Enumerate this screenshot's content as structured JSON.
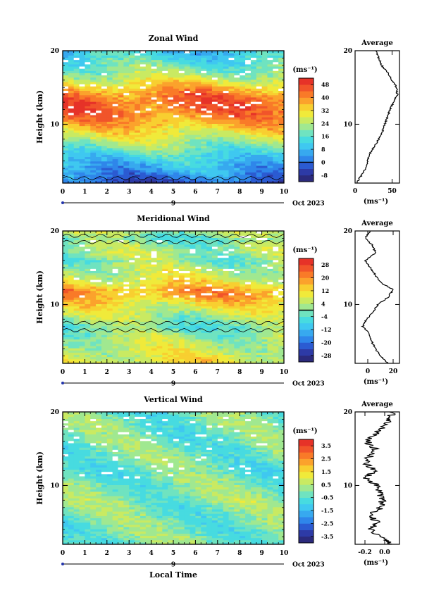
{
  "chart_data": [
    {
      "type": "heatmap",
      "title": "Zonal Wind",
      "xlabel": "",
      "ylabel": "Height (km)",
      "xlim": [
        0,
        10
      ],
      "ylim": [
        2,
        20
      ],
      "x_ticks": [
        "0",
        "1",
        "2",
        "3",
        "4",
        "5",
        "6",
        "7",
        "8",
        "9",
        "10"
      ],
      "y_ticks": [
        "10",
        "20"
      ],
      "date_label": "9",
      "date_suffix": "Oct 2023",
      "colorbar": {
        "unit": "(ms⁻¹)",
        "levels": [
          -12,
          -8,
          -4,
          0,
          4,
          8,
          12,
          16,
          20,
          24,
          28,
          32,
          36,
          40,
          44,
          48,
          52
        ],
        "tick_labels": [
          "48",
          "40",
          "32",
          "24",
          "16",
          "8",
          "0",
          "-8"
        ],
        "tick_values": [
          48,
          40,
          32,
          24,
          16,
          8,
          0,
          -8
        ],
        "zero_line": 0
      },
      "profile_by_height": {
        "heights": [
          2,
          3,
          4,
          5,
          6,
          7,
          8,
          9,
          10,
          11,
          12,
          13,
          14,
          15,
          16,
          17,
          18,
          19,
          20
        ],
        "values": [
          -4,
          2,
          6,
          10,
          14,
          20,
          26,
          30,
          36,
          40,
          43,
          44,
          42,
          36,
          28,
          22,
          18,
          14,
          10
        ]
      },
      "average": {
        "title": "Average",
        "unit": "(ms⁻¹)",
        "xlim": [
          0,
          60
        ],
        "x_ticks": [
          "0",
          "50"
        ],
        "y_ticks": [
          "10",
          "20"
        ],
        "heights": [
          2,
          3,
          4,
          5,
          6,
          7,
          8,
          9,
          10,
          11,
          12,
          13,
          14,
          15,
          16,
          17,
          18,
          19,
          20
        ],
        "values": [
          2,
          8,
          14,
          17,
          20,
          26,
          32,
          37,
          40,
          44,
          47,
          52,
          57,
          56,
          50,
          44,
          36,
          32,
          28
        ]
      }
    },
    {
      "type": "heatmap",
      "title": "Meridional Wind",
      "xlabel": "",
      "ylabel": "Height (km)",
      "xlim": [
        0,
        10
      ],
      "ylim": [
        2,
        20
      ],
      "x_ticks": [
        "0",
        "1",
        "2",
        "3",
        "4",
        "5",
        "6",
        "7",
        "8",
        "9",
        "10"
      ],
      "y_ticks": [
        "10",
        "20"
      ],
      "date_label": "9",
      "date_suffix": "Oct 2023",
      "colorbar": {
        "unit": "(ms⁻¹)",
        "levels": [
          -32,
          -28,
          -24,
          -20,
          -16,
          -12,
          -8,
          -4,
          0,
          4,
          8,
          12,
          16,
          20,
          24,
          28,
          32
        ],
        "tick_labels": [
          "28",
          "20",
          "12",
          "4",
          "-4",
          "-12",
          "-20",
          "-28"
        ],
        "tick_values": [
          28,
          20,
          12,
          4,
          -4,
          -12,
          -20,
          -28
        ],
        "zero_line": 0
      },
      "profile_by_height": {
        "heights": [
          2,
          3,
          4,
          5,
          6,
          7,
          8,
          9,
          10,
          11,
          12,
          13,
          14,
          15,
          16,
          17,
          18,
          19,
          20
        ],
        "values": [
          10,
          8,
          6,
          4,
          2,
          -2,
          2,
          6,
          10,
          16,
          18,
          10,
          6,
          4,
          0,
          4,
          2,
          -2,
          4
        ]
      },
      "average": {
        "title": "Average",
        "unit": "(ms⁻¹)",
        "xlim": [
          -10,
          25
        ],
        "x_ticks": [
          "0",
          "20"
        ],
        "y_ticks": [
          "10",
          "20"
        ],
        "heights": [
          2,
          3,
          4,
          5,
          6,
          7,
          8,
          9,
          10,
          11,
          12,
          13,
          14,
          15,
          16,
          17,
          18,
          19,
          20
        ],
        "values": [
          16,
          10,
          6,
          3,
          1,
          -4,
          -1,
          4,
          8,
          16,
          20,
          10,
          6,
          2,
          -2,
          6,
          4,
          -2,
          2
        ]
      }
    },
    {
      "type": "heatmap",
      "title": "Vertical Wind",
      "xlabel": "Local Time",
      "ylabel": "Height (km)",
      "xlim": [
        0,
        10
      ],
      "ylim": [
        2,
        20
      ],
      "x_ticks": [
        "0",
        "1",
        "2",
        "3",
        "4",
        "5",
        "6",
        "7",
        "8",
        "9",
        "10"
      ],
      "y_ticks": [
        "10",
        "20"
      ],
      "date_label": "9",
      "date_suffix": "Oct 2023",
      "colorbar": {
        "unit": "(ms⁻¹)",
        "levels": [
          -4,
          -3.5,
          -3,
          -2.5,
          -2,
          -1.5,
          -1,
          -0.5,
          0,
          0.5,
          1,
          1.5,
          2,
          2.5,
          3,
          3.5,
          4
        ],
        "tick_labels": [
          "3.5",
          "2.5",
          "1.5",
          "0.5",
          "-0.5",
          "-1.5",
          "-2.5",
          "-3.5"
        ],
        "tick_values": [
          3.5,
          2.5,
          1.5,
          0.5,
          -0.5,
          -1.5,
          -2.5,
          -3.5
        ],
        "zero_line": null
      },
      "profile_by_height": {
        "heights": [
          2,
          3,
          4,
          5,
          6,
          7,
          8,
          9,
          10,
          11,
          12,
          13,
          14,
          15,
          16,
          17,
          18,
          19,
          20
        ],
        "values": [
          -0.2,
          -0.1,
          -0.2,
          -0.1,
          -0.2,
          -0.1,
          0.1,
          0.0,
          -0.1,
          -0.2,
          -0.3,
          -0.2,
          -0.1,
          -0.2,
          -0.1,
          -0.3,
          -0.1,
          -0.2,
          -0.2
        ]
      },
      "average": {
        "title": "Average",
        "unit": "(ms⁻¹)",
        "xlim": [
          -0.3,
          0.15
        ],
        "x_ticks": [
          "-0.2",
          "0.0"
        ],
        "y_ticks": [
          "10",
          "20"
        ],
        "heights": [
          2,
          3,
          4,
          5,
          6,
          7,
          8,
          9,
          10,
          11,
          12,
          13,
          14,
          15,
          16,
          17,
          18,
          19,
          20
        ],
        "values": [
          0.08,
          -0.02,
          -0.15,
          -0.08,
          -0.14,
          -0.04,
          -0.02,
          -0.05,
          -0.08,
          -0.18,
          -0.1,
          -0.2,
          -0.15,
          -0.1,
          -0.18,
          -0.1,
          0.0,
          0.05,
          0.08
        ]
      }
    }
  ],
  "colormap": [
    "#2b2a7c",
    "#2d3aa6",
    "#2b5bd2",
    "#2f86ea",
    "#37a9ef",
    "#3fc8f0",
    "#47dbe0",
    "#6fe3c0",
    "#a0e890",
    "#c9ea62",
    "#f0ea3a",
    "#f8cf30",
    "#fba22c",
    "#f97a28",
    "#f1542a",
    "#e63228"
  ],
  "missing_color": "#ffffff"
}
